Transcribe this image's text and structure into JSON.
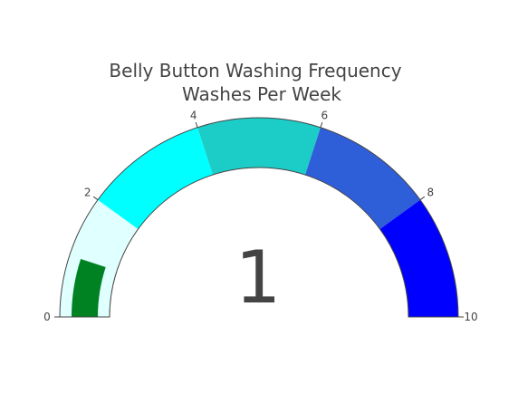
{
  "chart_data": {
    "type": "gauge",
    "title_line1": "Belly Button Washing Frequency",
    "title_line2": "Washes Per Week",
    "value": 1,
    "value_text": "1",
    "range": [
      0,
      10
    ],
    "ticks": [
      {
        "value": 0,
        "label": "0"
      },
      {
        "value": 2,
        "label": "2"
      },
      {
        "value": 4,
        "label": "4"
      },
      {
        "value": 6,
        "label": "6"
      },
      {
        "value": 8,
        "label": "8"
      },
      {
        "value": 10,
        "label": "10"
      }
    ],
    "steps": [
      {
        "range": [
          0,
          2
        ],
        "color": "#e0ffff"
      },
      {
        "range": [
          2,
          4
        ],
        "color": "#00ffff"
      },
      {
        "range": [
          4,
          6
        ],
        "color": "#1ccdc7"
      },
      {
        "range": [
          6,
          8
        ],
        "color": "#2f5ed9"
      },
      {
        "range": [
          8,
          10
        ],
        "color": "#0000ff"
      }
    ],
    "bar_color": "#008223"
  }
}
